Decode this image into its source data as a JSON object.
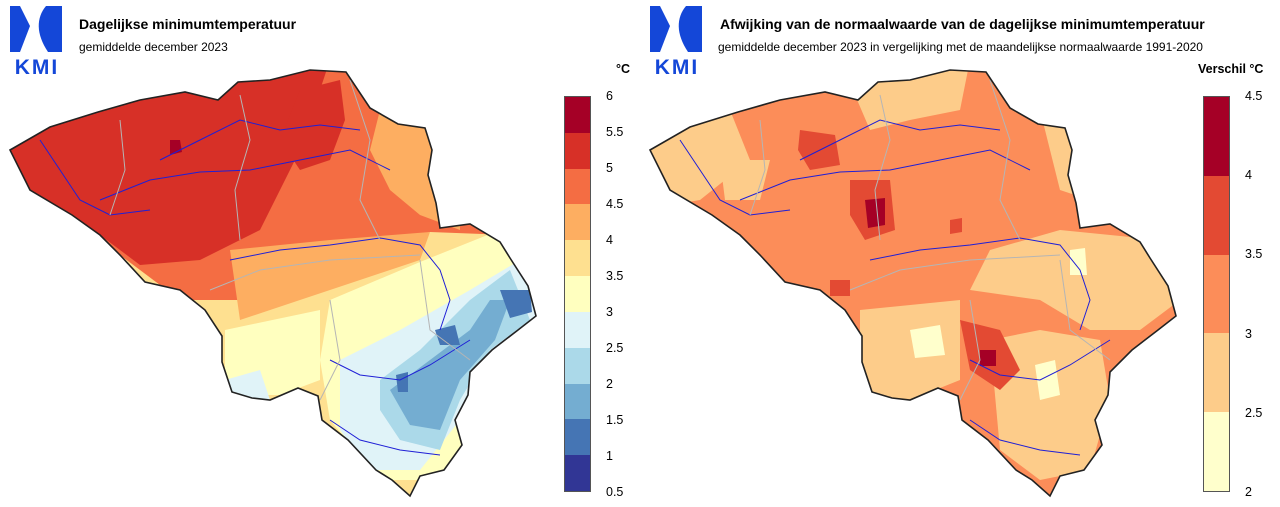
{
  "maps": [
    {
      "title": "Dagelijkse minimumtemperatuur",
      "subtitle": "gemiddelde december 2023",
      "logo_text": "KMI",
      "logo_icon": "kmi-logo-icon",
      "legend_unit": "°C",
      "legend_ticks": [
        "6",
        "5.5",
        "5",
        "4.5",
        "4",
        "3.5",
        "3",
        "2.5",
        "2",
        "1.5",
        "1",
        "0.5"
      ],
      "legend_colors": [
        "#a50026",
        "#d73027",
        "#f46d43",
        "#fdae61",
        "#fee090",
        "#ffffbf",
        "#e0f3f8",
        "#abd9e9",
        "#74add1",
        "#4575b4",
        "#313695"
      ]
    },
    {
      "title": "Afwijking van de normaalwaarde van de dagelijkse minimumtemperatuur",
      "subtitle": "gemiddelde december 2023 in vergelijking met de maandelijkse normaalwaarde 1991-2020",
      "logo_text": "KMI",
      "logo_icon": "kmi-logo-icon",
      "legend_unit": "Verschil °C",
      "legend_ticks": [
        "4.5",
        "4",
        "3.5",
        "3",
        "2.5",
        "2"
      ],
      "legend_colors": [
        "#a50026",
        "#e34a33",
        "#fc8d59",
        "#fdcc8a",
        "#ffffcc"
      ]
    }
  ]
}
